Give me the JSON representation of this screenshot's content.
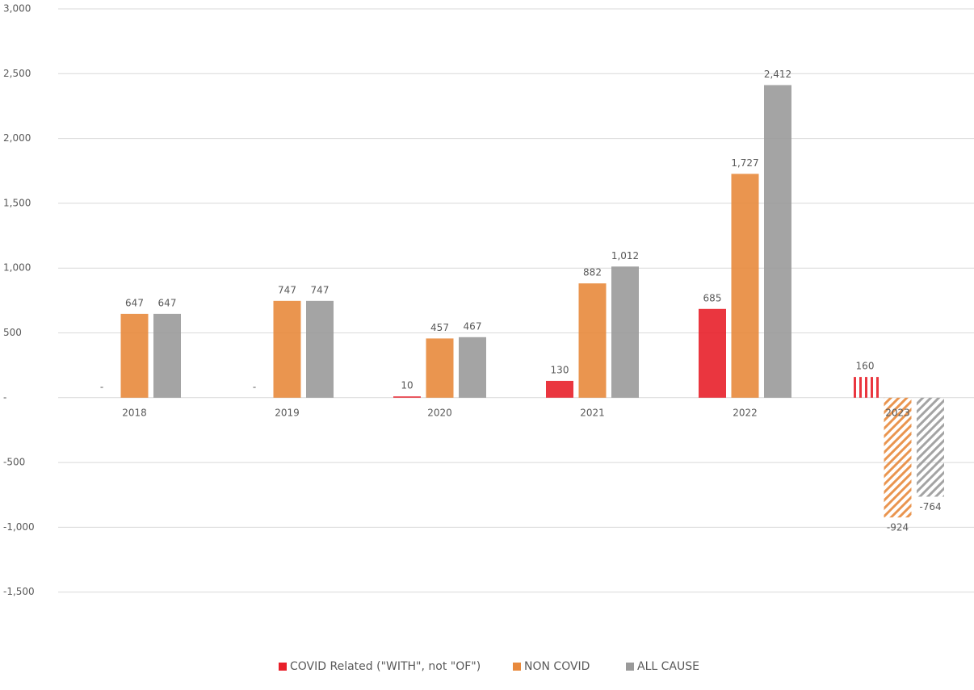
{
  "chart_data": {
    "type": "bar",
    "categories": [
      "2018",
      "2019",
      "2020",
      "2021",
      "2022",
      "2023"
    ],
    "series": [
      {
        "name": "COVID Related (\"WITH\", not \"OF\")",
        "color": "#e8202a",
        "values": [
          0,
          0,
          10,
          130,
          685,
          160
        ],
        "value_labels": [
          "-",
          "-",
          "10",
          "130",
          "685",
          "160"
        ]
      },
      {
        "name": "NON COVID",
        "color": "#e8893c",
        "values": [
          647,
          747,
          457,
          882,
          1727,
          -924
        ],
        "value_labels": [
          "647",
          "747",
          "457",
          "882",
          "1,727",
          "-924"
        ]
      },
      {
        "name": "ALL CAUSE",
        "color": "#9a9a9a",
        "values": [
          647,
          747,
          467,
          1012,
          2412,
          -764
        ],
        "value_labels": [
          "647",
          "747",
          "467",
          "1,012",
          "2,412",
          "-764"
        ]
      }
    ],
    "hatched": [
      false,
      false,
      false,
      false,
      false,
      true
    ],
    "ylim": [
      -2000,
      3000
    ],
    "yticks": [
      {
        "value": 3000,
        "label": "3,000"
      },
      {
        "value": 2500,
        "label": "2,500"
      },
      {
        "value": 2000,
        "label": "2,000"
      },
      {
        "value": 1500,
        "label": "1,500"
      },
      {
        "value": 1000,
        "label": "1,000"
      },
      500,
      {
        "value": 0,
        "label": "-"
      },
      -500,
      {
        "value": -1000,
        "label": "-1,000"
      },
      {
        "value": -1500,
        "label": "-1,500"
      }
    ],
    "grid": true,
    "legend": "bottom"
  }
}
